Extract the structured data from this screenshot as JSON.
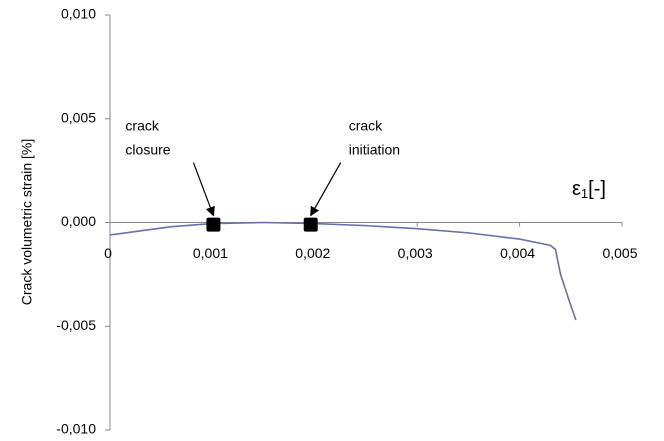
{
  "chart_data": {
    "type": "line",
    "y_label": "Crack volumetric strain [%]",
    "x_label": {
      "symbol": "ε",
      "subscript": "1",
      "unit": "[-]"
    },
    "x": [
      0,
      0.0003,
      0.0006,
      0.001,
      0.0015,
      0.002,
      0.0025,
      0.003,
      0.0035,
      0.004,
      0.0042,
      0.0043,
      0.00435,
      0.0044,
      0.0045,
      0.00455
    ],
    "series": [
      {
        "color": "#6a6fa8",
        "values": [
          -0.0006,
          -0.0004,
          -0.0002,
          -5e-05,
          0,
          -5e-05,
          -0.00015,
          -0.0003,
          -0.0005,
          -0.0008,
          -0.001,
          -0.0011,
          -0.0013,
          -0.0025,
          -0.004,
          -0.0047
        ]
      }
    ],
    "markers": {
      "color": "#000000",
      "x": [
        0.00101,
        0.00196
      ],
      "values": [
        -0.0001,
        -0.0001
      ]
    },
    "annotations": [
      {
        "lines": [
          "crack",
          "closure"
        ]
      },
      {
        "lines": [
          "crack",
          "initiation"
        ]
      }
    ],
    "xlim": [
      0,
      0.005
    ],
    "xticks": [
      0,
      {
        "value": 0.001,
        "label": "0,001"
      },
      {
        "value": 0.002,
        "label": "0,002"
      },
      {
        "value": 0.003,
        "label": "0,003"
      },
      {
        "value": 0.004,
        "label": "0,004"
      },
      {
        "value": 0.005,
        "label": "0,005"
      }
    ],
    "ylim": [
      -0.01,
      0.01
    ],
    "yticks": [
      {
        "value": -0.01,
        "label": "-0,010"
      },
      {
        "value": -0.005,
        "label": "-0,005"
      },
      {
        "value": 0,
        "label": "0,000"
      },
      {
        "value": 0.005,
        "label": "0,005"
      },
      {
        "value": 0.01,
        "label": "0,010"
      }
    ],
    "grid": false
  }
}
